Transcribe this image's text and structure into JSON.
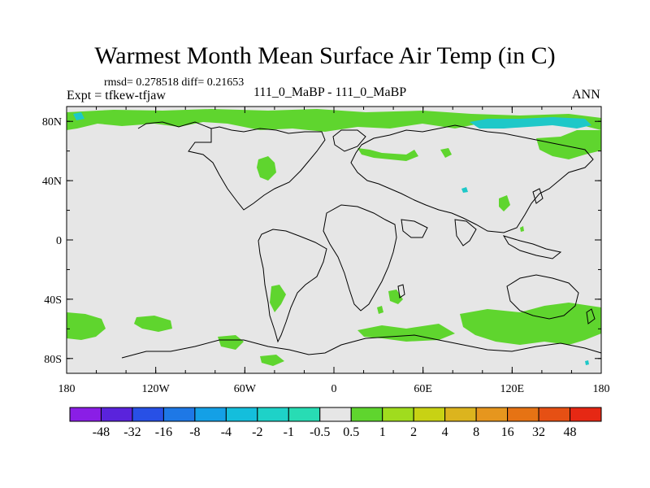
{
  "figure": {
    "title": "Warmest Month Mean Surface Air Temp (in C)",
    "stats": "rmsd= 0.278518 diff= 0.21653",
    "expt": "Expt = tfkew-tfjaw",
    "subtitle": "111_0_MaBP - 111_0_MaBP",
    "season": "ANN"
  },
  "axes": {
    "x_ticks": [
      "180",
      "120W",
      "60W",
      "0",
      "60E",
      "120E",
      "180"
    ],
    "y_ticks": [
      "80N",
      "40N",
      "0",
      "40S",
      "80S"
    ]
  },
  "colors": {
    "background_field": "#e6e6e6",
    "positive_small": "#5fd52e",
    "negative_small": "#1ec8c8",
    "coastline": "#000000"
  },
  "colorbar": {
    "labels": [
      "-48",
      "-32",
      "-16",
      "-8",
      "-4",
      "-2",
      "-1",
      "-0.5",
      "0.5",
      "1",
      "2",
      "4",
      "8",
      "16",
      "32",
      "48"
    ],
    "colors": [
      "#8a1ee6",
      "#5a23dc",
      "#2850e6",
      "#1e78e6",
      "#14a0e6",
      "#14bedc",
      "#1ed2c8",
      "#28dcb4",
      "#e6e6e6",
      "#5fd52e",
      "#a0dc1e",
      "#c8d214",
      "#dcb41e",
      "#e6961e",
      "#e67314",
      "#e65014",
      "#e62814"
    ]
  }
}
